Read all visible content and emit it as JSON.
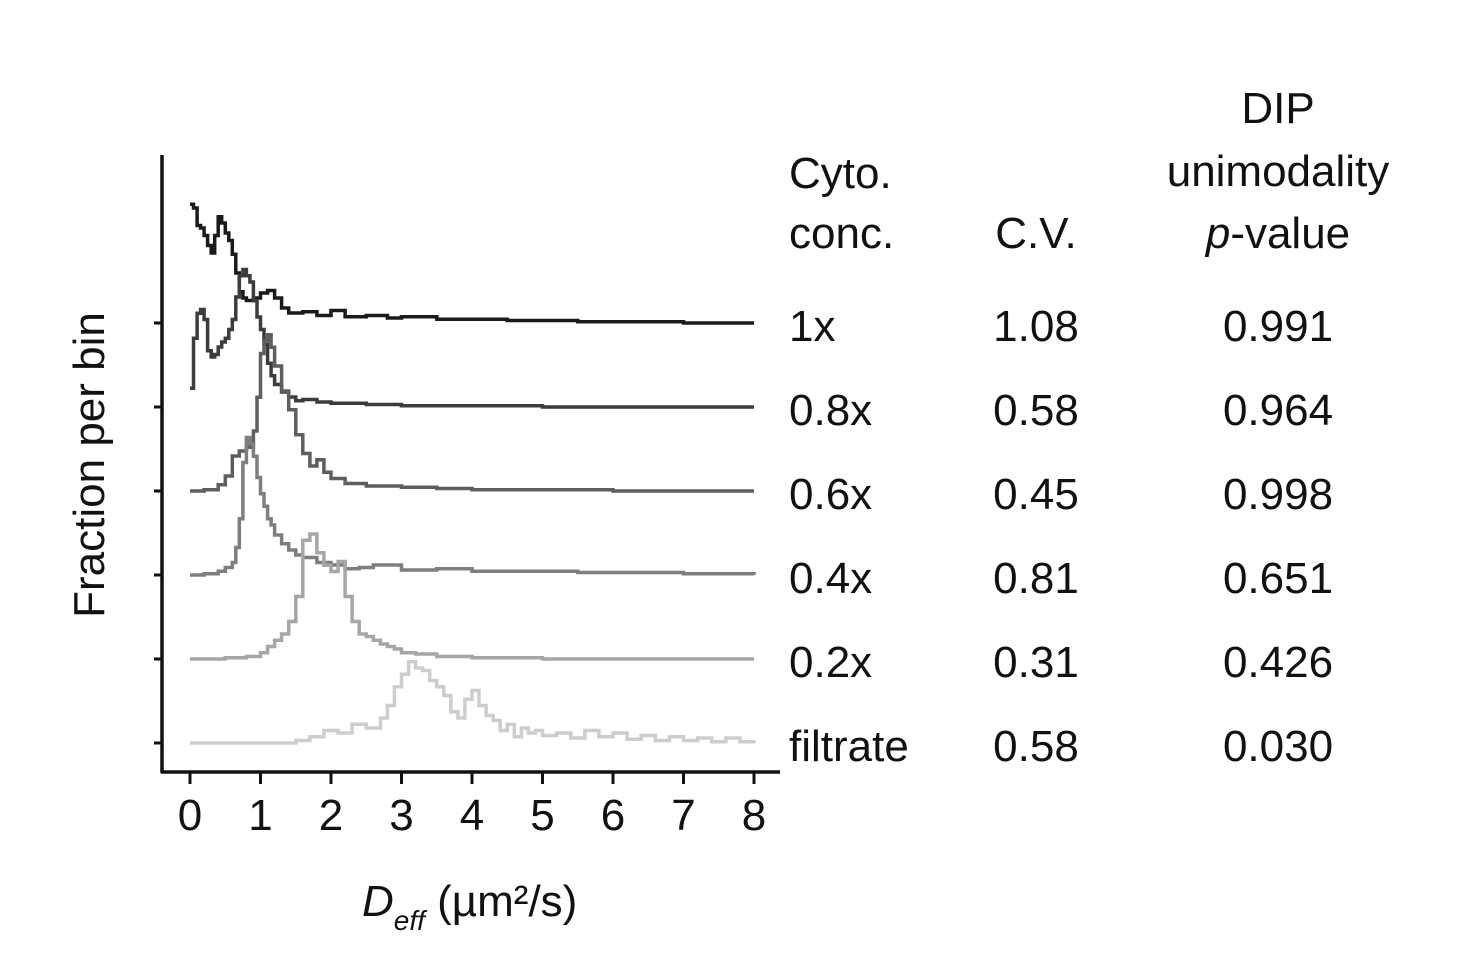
{
  "chart_data": {
    "type": "line",
    "style": "stacked step histograms (offset vertically)",
    "xlabel": {
      "main": "D",
      "sub": "eff",
      "unit": " (µm²/s)"
    },
    "ylabel": "Fraction per bin",
    "xlim": [
      0,
      8
    ],
    "x_ticks": [
      "0",
      "1",
      "2",
      "3",
      "4",
      "5",
      "6",
      "7",
      "8"
    ],
    "y_tick_labels": false,
    "grid": false,
    "table": {
      "headers": {
        "conc": [
          "Cyto.",
          "conc."
        ],
        "cv": [
          "C.V."
        ],
        "dip": [
          "DIP",
          "unimodality"
        ],
        "dip_p_italic": "p",
        "dip_p_rest": "-value"
      },
      "rows": [
        {
          "conc": "1x",
          "cv": "1.08",
          "p": "0.991"
        },
        {
          "conc": "0.8x",
          "cv": "0.58",
          "p": "0.964"
        },
        {
          "conc": "0.6x",
          "cv": "0.45",
          "p": "0.998"
        },
        {
          "conc": "0.4x",
          "cv": "0.81",
          "p": "0.651"
        },
        {
          "conc": "0.2x",
          "cv": "0.31",
          "p": "0.426"
        },
        {
          "conc": "filtrate",
          "cv": "0.58",
          "p": "0.030"
        }
      ]
    },
    "series": [
      {
        "color": "#1a1a1a",
        "x": [
          0.0,
          0.05,
          0.1,
          0.15,
          0.2,
          0.25,
          0.3,
          0.35,
          0.4,
          0.45,
          0.5,
          0.55,
          0.6,
          0.65,
          0.7,
          0.75,
          0.8,
          0.9,
          1.0,
          1.1,
          1.2,
          1.3,
          1.4,
          1.6,
          1.8,
          2.0,
          2.2,
          2.5,
          2.8,
          3.0,
          3.5,
          4.0,
          4.5,
          5.0,
          5.5,
          6.0,
          7.0,
          8.0
        ],
        "y": [
          0.95,
          0.92,
          0.78,
          0.76,
          0.7,
          0.62,
          0.56,
          0.7,
          0.85,
          0.8,
          0.72,
          0.66,
          0.55,
          0.4,
          0.25,
          0.2,
          0.18,
          0.2,
          0.24,
          0.26,
          0.2,
          0.12,
          0.08,
          0.09,
          0.06,
          0.1,
          0.05,
          0.06,
          0.04,
          0.05,
          0.03,
          0.03,
          0.02,
          0.02,
          0.01,
          0.01,
          0.0,
          0.0
        ]
      },
      {
        "color": "#3c3c3c",
        "x": [
          0.0,
          0.05,
          0.1,
          0.15,
          0.2,
          0.25,
          0.3,
          0.35,
          0.4,
          0.45,
          0.5,
          0.55,
          0.6,
          0.65,
          0.7,
          0.75,
          0.8,
          0.85,
          0.9,
          0.95,
          1.0,
          1.05,
          1.1,
          1.15,
          1.2,
          1.3,
          1.4,
          1.5,
          1.6,
          1.8,
          2.0,
          2.5,
          3.0,
          3.5,
          4.0,
          5.0,
          6.0,
          8.0
        ],
        "y": [
          0.15,
          0.55,
          0.75,
          0.78,
          0.7,
          0.45,
          0.4,
          0.42,
          0.48,
          0.52,
          0.55,
          0.62,
          0.7,
          0.88,
          1.05,
          1.1,
          1.05,
          1.0,
          0.85,
          0.72,
          0.62,
          0.5,
          0.35,
          0.25,
          0.18,
          0.12,
          0.08,
          0.05,
          0.06,
          0.04,
          0.03,
          0.02,
          0.01,
          0.01,
          0.01,
          0.0,
          0.0,
          0.0
        ]
      },
      {
        "color": "#5e5e5e",
        "x": [
          0.0,
          0.2,
          0.4,
          0.5,
          0.6,
          0.7,
          0.8,
          0.9,
          0.95,
          1.0,
          1.05,
          1.1,
          1.15,
          1.2,
          1.3,
          1.4,
          1.5,
          1.6,
          1.7,
          1.8,
          1.9,
          2.0,
          2.2,
          2.5,
          3.0,
          3.5,
          4.0,
          5.0,
          6.0,
          8.0
        ],
        "y": [
          0.0,
          0.01,
          0.05,
          0.12,
          0.28,
          0.32,
          0.35,
          0.48,
          0.75,
          1.1,
          1.2,
          1.25,
          1.15,
          1.0,
          0.8,
          0.65,
          0.45,
          0.3,
          0.2,
          0.25,
          0.15,
          0.1,
          0.06,
          0.04,
          0.03,
          0.02,
          0.01,
          0.01,
          0.0,
          0.0
        ]
      },
      {
        "color": "#7e7e7e",
        "x": [
          0.0,
          0.2,
          0.4,
          0.5,
          0.6,
          0.65,
          0.7,
          0.75,
          0.8,
          0.85,
          0.9,
          0.95,
          1.0,
          1.05,
          1.1,
          1.15,
          1.2,
          1.3,
          1.4,
          1.5,
          1.6,
          1.8,
          2.0,
          2.2,
          2.4,
          2.6,
          3.0,
          3.5,
          4.0,
          4.5,
          5.0,
          5.5,
          6.0,
          6.5,
          7.0,
          8.0
        ],
        "y": [
          0.0,
          0.01,
          0.03,
          0.06,
          0.1,
          0.22,
          0.45,
          0.9,
          1.1,
          1.05,
          0.95,
          0.78,
          0.65,
          0.55,
          0.45,
          0.4,
          0.32,
          0.25,
          0.2,
          0.16,
          0.14,
          0.1,
          0.08,
          0.05,
          0.06,
          0.08,
          0.04,
          0.05,
          0.03,
          0.03,
          0.03,
          0.02,
          0.02,
          0.02,
          0.01,
          0.0
        ]
      },
      {
        "color": "#a6a6a6",
        "x": [
          0.0,
          0.5,
          0.8,
          1.0,
          1.1,
          1.2,
          1.3,
          1.4,
          1.5,
          1.6,
          1.7,
          1.8,
          1.9,
          2.0,
          2.1,
          2.2,
          2.3,
          2.4,
          2.5,
          2.6,
          2.7,
          2.8,
          2.9,
          3.0,
          3.2,
          3.5,
          4.0,
          5.0,
          6.0,
          8.0
        ],
        "y": [
          0.0,
          0.01,
          0.02,
          0.05,
          0.1,
          0.15,
          0.2,
          0.3,
          0.5,
          0.95,
          1.0,
          0.85,
          0.75,
          0.7,
          0.78,
          0.5,
          0.3,
          0.2,
          0.18,
          0.15,
          0.12,
          0.1,
          0.08,
          0.05,
          0.04,
          0.02,
          0.01,
          0.0,
          0.0,
          0.0
        ]
      },
      {
        "color": "#cdcdcd",
        "x": [
          0.0,
          1.0,
          1.5,
          1.7,
          1.9,
          2.1,
          2.3,
          2.5,
          2.7,
          2.8,
          2.9,
          3.0,
          3.1,
          3.2,
          3.3,
          3.4,
          3.5,
          3.6,
          3.7,
          3.8,
          3.9,
          4.0,
          4.1,
          4.2,
          4.3,
          4.4,
          4.5,
          4.6,
          4.7,
          4.8,
          4.9,
          5.0,
          5.2,
          5.4,
          5.6,
          5.8,
          6.0,
          6.2,
          6.4,
          6.6,
          6.8,
          7.0,
          7.2,
          7.4,
          7.6,
          7.8,
          8.0
        ],
        "y": [
          0.0,
          0.0,
          0.02,
          0.05,
          0.1,
          0.08,
          0.15,
          0.12,
          0.2,
          0.3,
          0.45,
          0.55,
          0.65,
          0.6,
          0.58,
          0.5,
          0.45,
          0.38,
          0.25,
          0.2,
          0.35,
          0.42,
          0.3,
          0.22,
          0.18,
          0.1,
          0.15,
          0.05,
          0.12,
          0.08,
          0.1,
          0.06,
          0.08,
          0.04,
          0.1,
          0.05,
          0.08,
          0.03,
          0.06,
          0.02,
          0.05,
          0.02,
          0.04,
          0.01,
          0.04,
          0.01,
          0.0
        ]
      }
    ]
  }
}
